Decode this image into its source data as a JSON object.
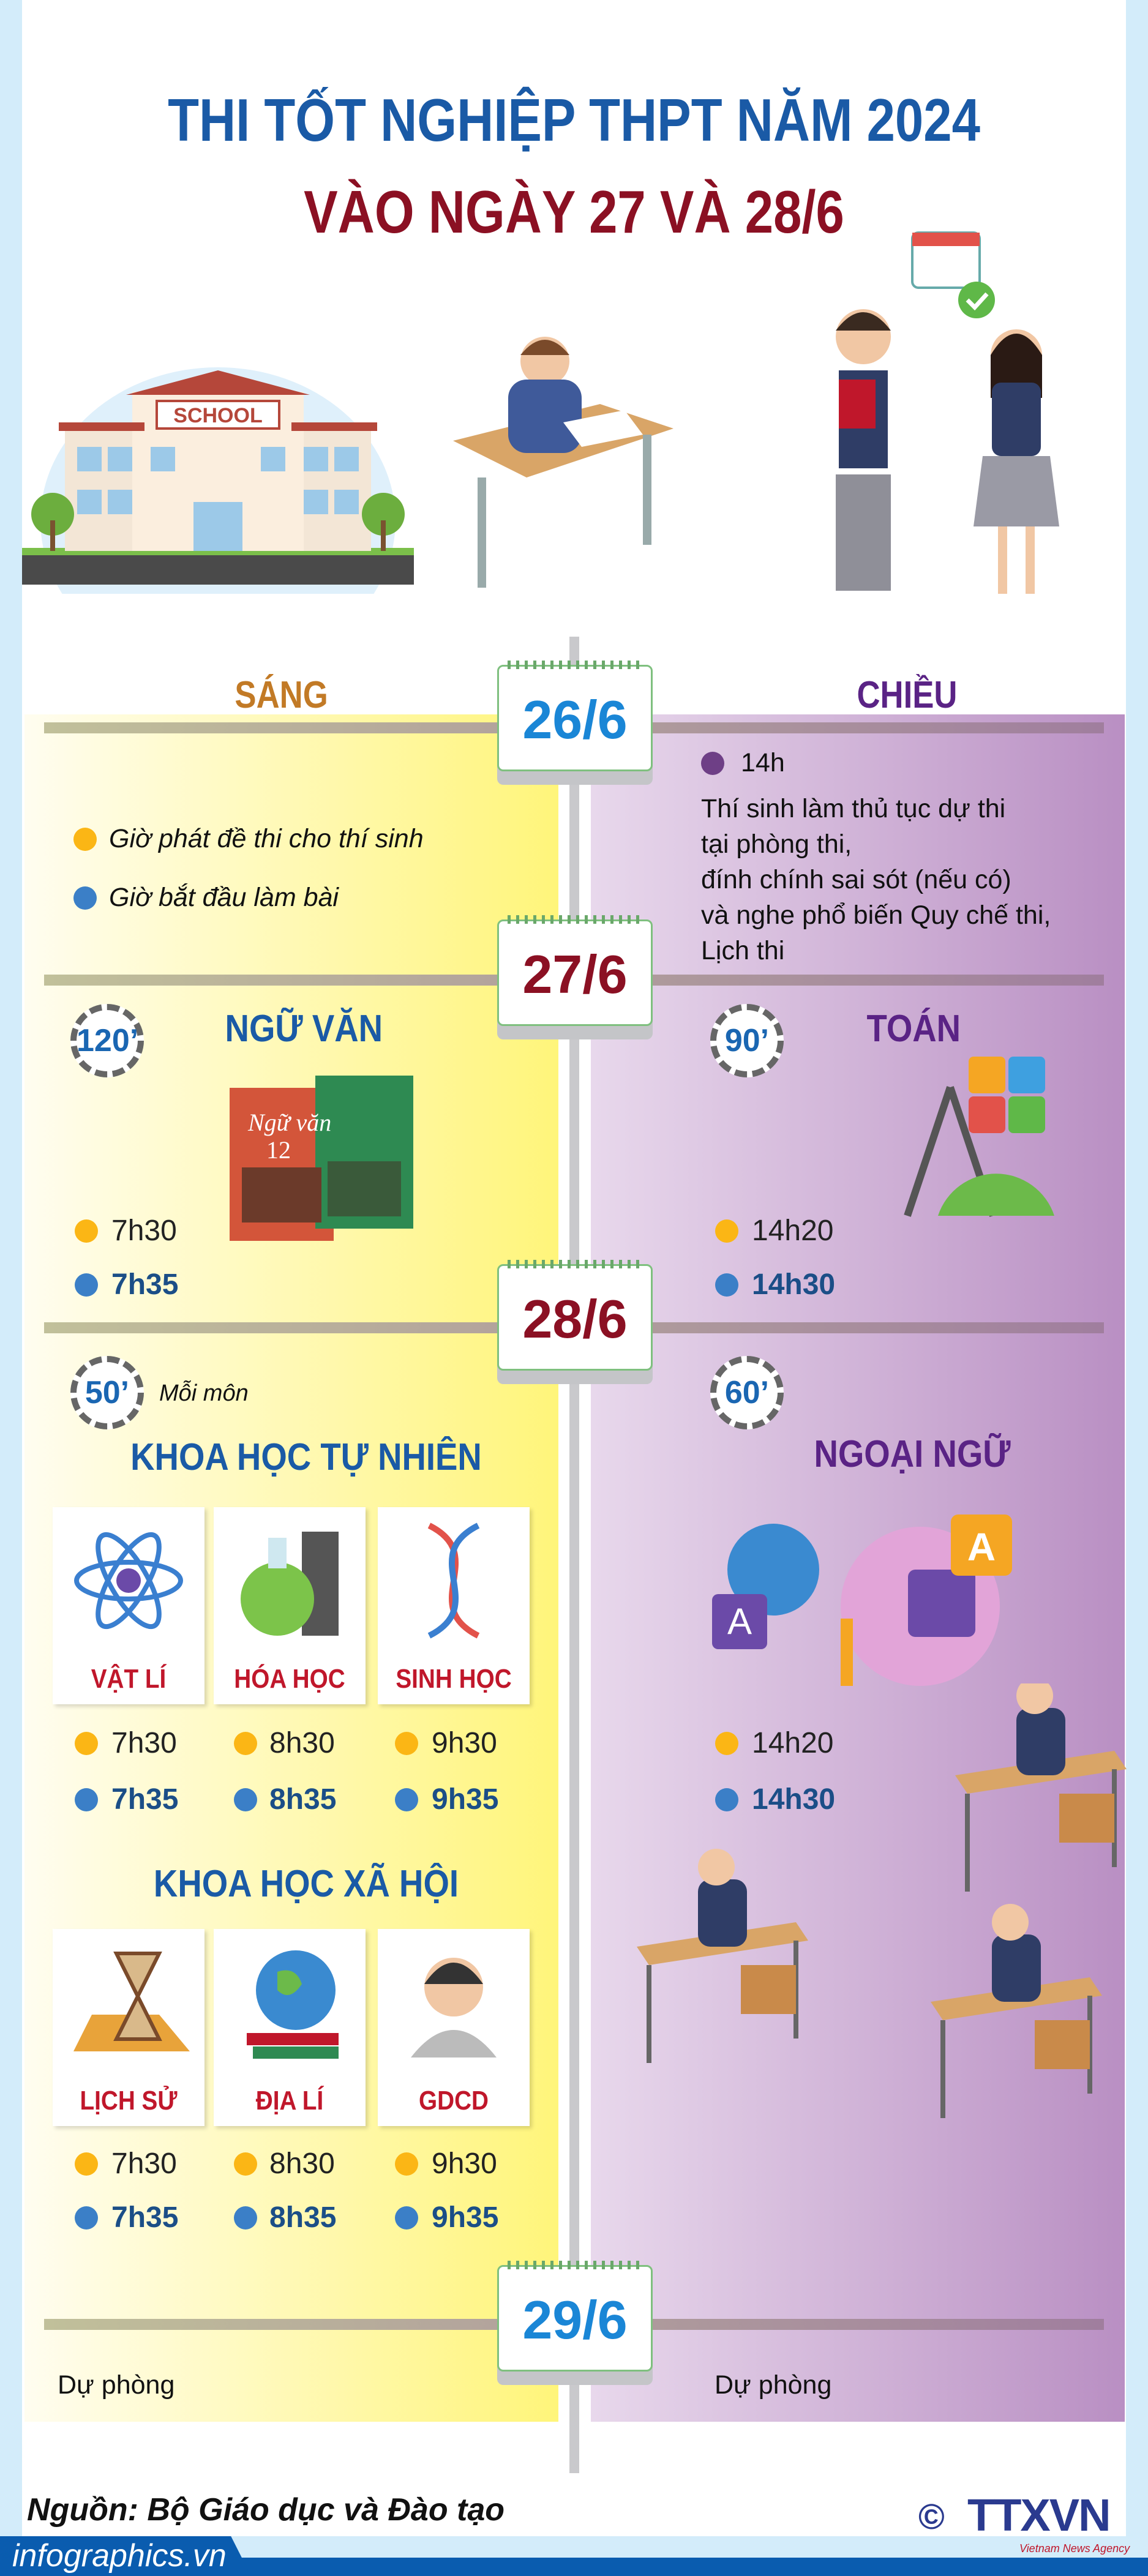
{
  "header": {
    "line1": "THI TỐT NGHIỆP THPT NĂM 2024",
    "line2": "VÀO NGÀY 27 VÀ 28/6",
    "school_sign": "SCHOOL"
  },
  "columns": {
    "morning": "SÁNG",
    "afternoon": "CHIỀU"
  },
  "colors": {
    "morning_title": "#c27a26",
    "afternoon_title": "#5a2385",
    "date_blue": "#1a86d6",
    "date_red": "#8b1023",
    "dot_yellow": "#fbb615",
    "dot_blue": "#3b7fc7",
    "dot_purple": "#6e3f86"
  },
  "legend": {
    "release": "Giờ phát đề thi cho thí sinh",
    "start": "Giờ bắt đầu làm bài"
  },
  "dates": [
    "26/6",
    "27/6",
    "28/6",
    "29/6"
  ],
  "day26": {
    "time": "14h",
    "lines": [
      "Thí sinh làm thủ tục dự thi",
      "tại phòng thi,",
      "đính chính sai sót (nếu có)",
      "và nghe phổ biến Quy chế thi,",
      "Lịch thi"
    ]
  },
  "day27": {
    "morning": {
      "duration": "120’",
      "subject": "NGỮ VĂN",
      "book_label": "Ngữ văn",
      "book_grade": "12",
      "release": "7h30",
      "start": "7h35"
    },
    "afternoon": {
      "duration": "90’",
      "subject": "TOÁN",
      "release": "14h20",
      "start": "14h30"
    }
  },
  "day28": {
    "morning": {
      "duration": "50’",
      "note": "Mỗi môn",
      "group1": {
        "title": "KHOA HỌC TỰ NHIÊN",
        "subjects": [
          {
            "name": "VẬT LÍ",
            "release": "7h30",
            "start": "7h35",
            "icon": "atom-icon"
          },
          {
            "name": "HÓA HỌC",
            "release": "8h30",
            "start": "8h35",
            "icon": "flask-icon"
          },
          {
            "name": "SINH HỌC",
            "release": "9h30",
            "start": "9h35",
            "icon": "dna-icon"
          }
        ]
      },
      "group2": {
        "title": "KHOA HỌC XÃ HỘI",
        "subjects": [
          {
            "name": "LỊCH SỬ",
            "release": "7h30",
            "start": "7h35",
            "icon": "hourglass-icon"
          },
          {
            "name": "ĐỊA LÍ",
            "release": "8h30",
            "start": "8h35",
            "icon": "globe-icon"
          },
          {
            "name": "GDCD",
            "release": "9h30",
            "start": "9h35",
            "icon": "person-icon"
          }
        ]
      }
    },
    "afternoon": {
      "duration": "60’",
      "subject": "NGOẠI NGỮ",
      "release": "14h20",
      "start": "14h30"
    }
  },
  "day29": {
    "morning": "Dự phòng",
    "afternoon": "Dự phòng"
  },
  "footer": {
    "source": "Nguồn: Bộ Giáo dục và Đào tạo",
    "site": "infographics.vn",
    "logo": "TTXVN",
    "logo_sub": "Vietnam News Agency"
  }
}
